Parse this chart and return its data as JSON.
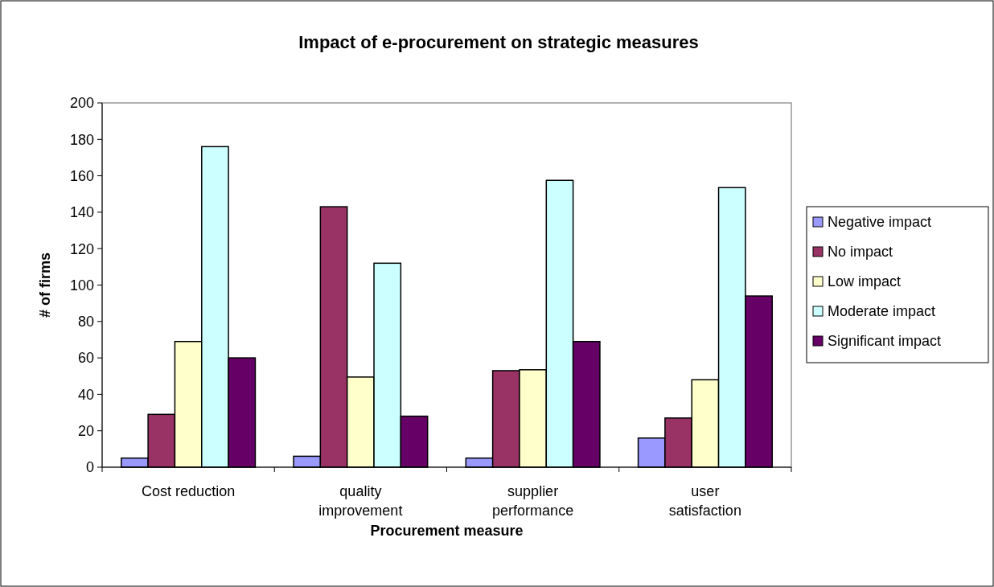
{
  "chart_data": {
    "type": "bar",
    "title": "Impact of e-procurement on strategic measures",
    "xlabel": "Procurement measure",
    "ylabel": "# of firms",
    "categories": [
      "Cost reduction",
      "quality improvement",
      "supplier performance",
      "user satisfaction"
    ],
    "series": [
      {
        "name": "Negative impact",
        "color": "#9999ff",
        "values": [
          5,
          6,
          5,
          16
        ]
      },
      {
        "name": "No impact",
        "color": "#993366",
        "values": [
          29,
          143,
          53,
          27
        ]
      },
      {
        "name": "Low impact",
        "color": "#ffffcc",
        "values": [
          69,
          49.5,
          53.5,
          48
        ]
      },
      {
        "name": "Moderate impact",
        "color": "#ccffff",
        "values": [
          176,
          112,
          157.5,
          153.5
        ]
      },
      {
        "name": "Significant impact",
        "color": "#660066",
        "values": [
          60,
          28,
          69,
          94
        ]
      }
    ],
    "ylim": [
      0,
      200
    ],
    "yticks": [
      0,
      20,
      40,
      60,
      80,
      100,
      120,
      140,
      160,
      180,
      200
    ],
    "grid": false,
    "legend": "right"
  }
}
